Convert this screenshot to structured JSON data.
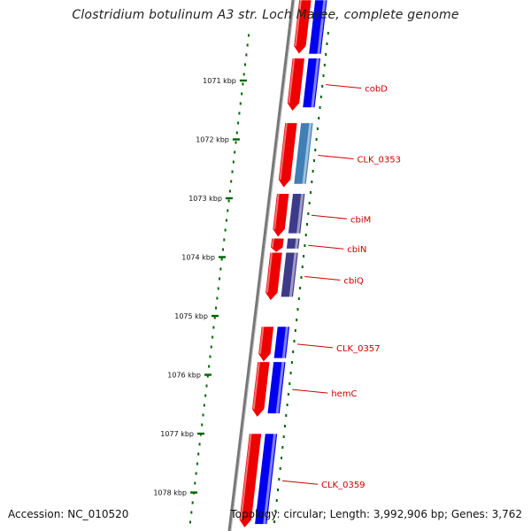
{
  "title": "Clostridium botulinum A3 str. Loch Maree, complete genome",
  "footer": {
    "accession": "Accession: NC_010520",
    "summary": "Topology: circular; Length: 3,992,906 bp; Genes: 3,762"
  },
  "ticks": [
    {
      "label": "1071 kbp",
      "kbp": 1071
    },
    {
      "label": "1072 kbp",
      "kbp": 1072
    },
    {
      "label": "1073 kbp",
      "kbp": 1073
    },
    {
      "label": "1074 kbp",
      "kbp": 1074
    },
    {
      "label": "1075 kbp",
      "kbp": 1075
    },
    {
      "label": "1076 kbp",
      "kbp": 1076
    },
    {
      "label": "1077 kbp",
      "kbp": 1077
    },
    {
      "label": "1078 kbp",
      "kbp": 1078
    }
  ],
  "genes": [
    {
      "label": "cobD",
      "start": 1070.62,
      "end": 1071.52,
      "blue_color": "#0000ee"
    },
    {
      "label": "CLK_0353",
      "start": 1071.72,
      "end": 1072.82,
      "blue_color": "#3f7fb5"
    },
    {
      "label": "cbiM",
      "start": 1072.92,
      "end": 1073.66,
      "blue_color": "#3d3a8c"
    },
    {
      "label": "cbiN",
      "start": 1073.68,
      "end": 1073.92,
      "blue_color": "#3d3a8c"
    },
    {
      "label": "cbiQ",
      "start": 1073.92,
      "end": 1074.74,
      "blue_color": "#3d3a8c"
    },
    {
      "label": "CLK_0357",
      "start": 1075.18,
      "end": 1075.78,
      "blue_color": "#0000ee"
    },
    {
      "label": "hemC",
      "start": 1075.78,
      "end": 1076.72,
      "blue_color": "#0000ee"
    },
    {
      "label": "CLK_0359",
      "start": 1077.0,
      "end": 1078.6,
      "blue_color": "#0000ee"
    }
  ],
  "colors": {
    "forward_gene": "#ee0000",
    "tick": "#006600",
    "label": "#cc0000",
    "backbone": "#777777"
  }
}
